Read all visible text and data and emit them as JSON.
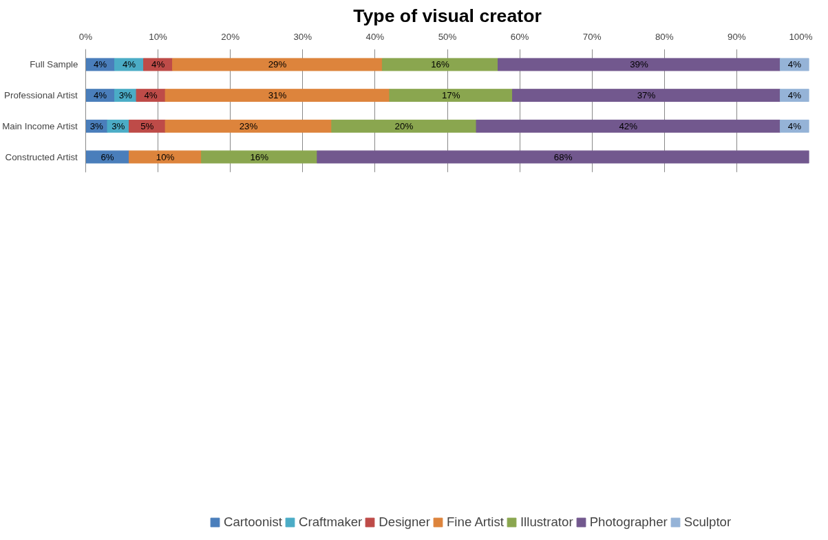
{
  "chart_data": {
    "type": "bar",
    "title": "Type of visual creator",
    "orientation": "horizontal",
    "stacked": true,
    "categories": [
      "Full Sample",
      "Professional Artist",
      "Main Income Artist",
      "Constructed Artist"
    ],
    "series": [
      {
        "name": "Cartoonist",
        "color": "#4a7ebb",
        "values": [
          4,
          4,
          3,
          6
        ],
        "value_labels": [
          "4%",
          "4%",
          "3%",
          "6%"
        ]
      },
      {
        "name": "Craftmaker",
        "color": "#4bacc6",
        "values": [
          4,
          3,
          3,
          null
        ],
        "value_labels": [
          "4%",
          "3%",
          "3%",
          null
        ]
      },
      {
        "name": "Designer",
        "color": "#be4b48",
        "values": [
          4,
          4,
          5,
          null
        ],
        "value_labels": [
          "4%",
          "4%",
          "5%",
          null
        ]
      },
      {
        "name": "Fine Artist",
        "color": "#dd843c",
        "values": [
          29,
          31,
          23,
          10
        ],
        "value_labels": [
          "29%",
          "31%",
          "23%",
          "10%"
        ]
      },
      {
        "name": "Illustrator",
        "color": "#8aa64f",
        "values": [
          16,
          17,
          20,
          16
        ],
        "value_labels": [
          "16%",
          "17%",
          "20%",
          "16%"
        ]
      },
      {
        "name": "Photographer",
        "color": "#72588e",
        "values": [
          39,
          37,
          42,
          68
        ],
        "value_labels": [
          "39%",
          "37%",
          "42%",
          "68%"
        ]
      },
      {
        "name": "Sculptor",
        "color": "#95b3d7",
        "values": [
          4,
          4,
          4,
          null
        ],
        "value_labels": [
          "4%",
          "4%",
          "4%",
          null
        ]
      }
    ],
    "xlim": [
      0,
      100
    ],
    "xticks": [
      {
        "value": 0,
        "label": "0%"
      },
      {
        "value": 10,
        "label": "10%"
      },
      {
        "value": 20,
        "label": "20%"
      },
      {
        "value": 30,
        "label": "30%"
      },
      {
        "value": 40,
        "label": "40%"
      },
      {
        "value": 50,
        "label": "50%"
      },
      {
        "value": 60,
        "label": "60%"
      },
      {
        "value": 70,
        "label": "70%"
      },
      {
        "value": 80,
        "label": "80%"
      },
      {
        "value": 90,
        "label": "90%"
      },
      {
        "value": 100,
        "label": "100%"
      }
    ],
    "grid": "x",
    "legend": "bottom"
  }
}
